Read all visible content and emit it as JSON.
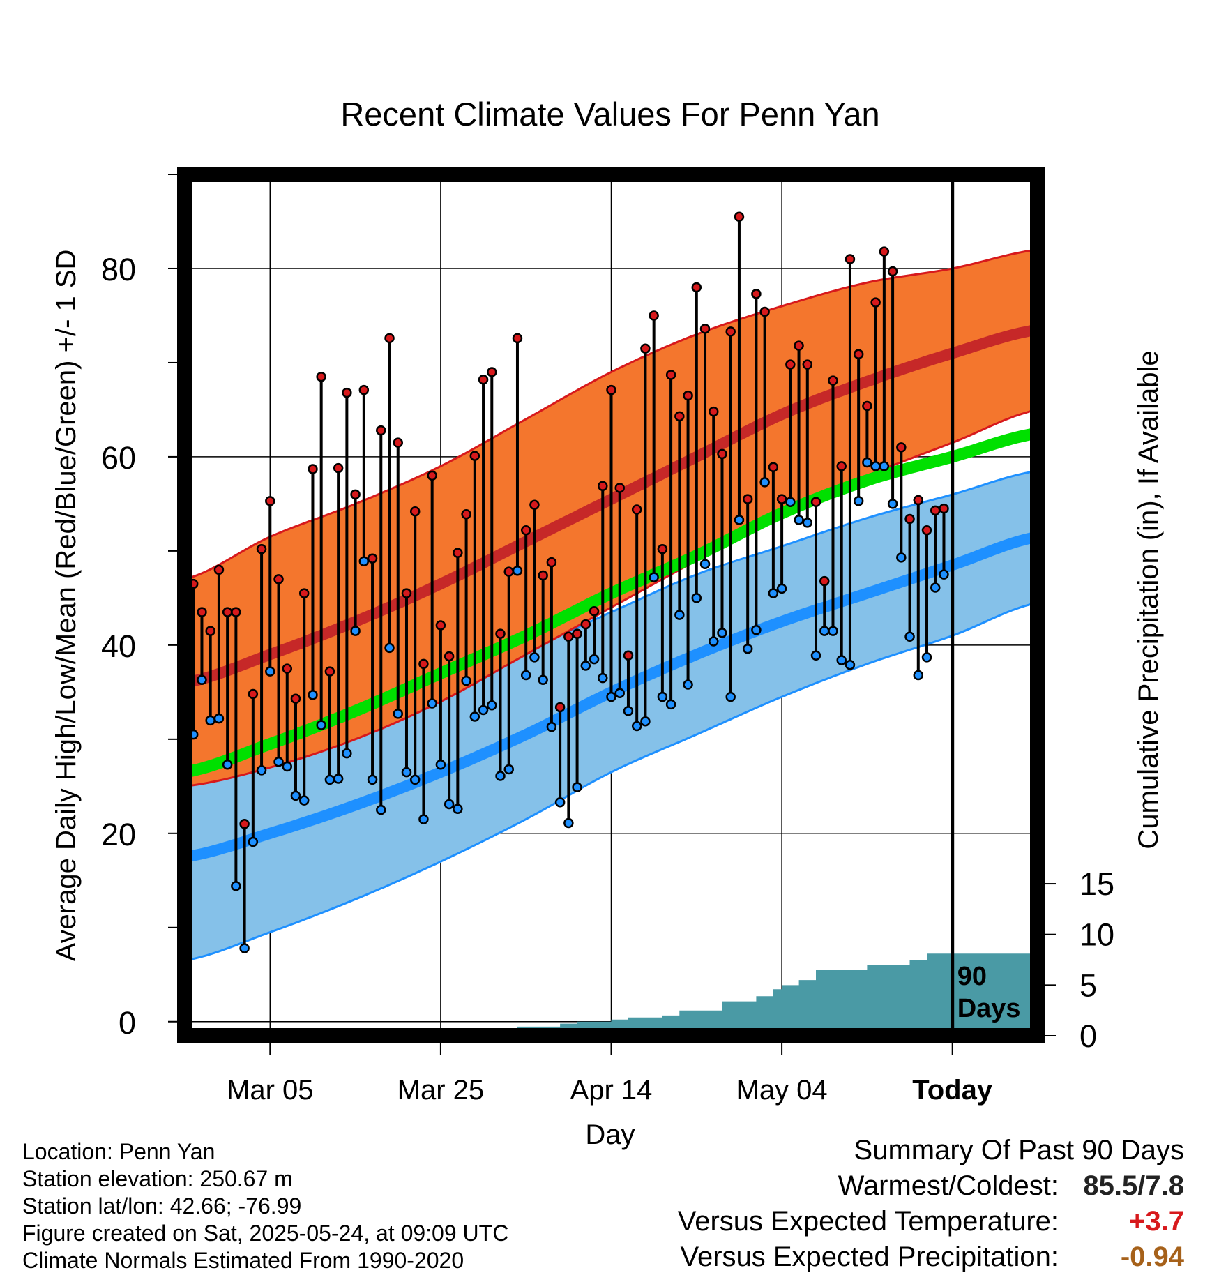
{
  "chart_data": {
    "type": "line",
    "title": "Recent Climate Values For Penn Yan",
    "xlabel": "Day",
    "ylabel": "Average Daily High/Low/Mean (Red/Blue/Green) +/- 1 SD",
    "y2label": "Cumulative Precipitation (in), If Available",
    "ylim": [
      -1.5,
      90
    ],
    "y2lim": [
      0,
      85
    ],
    "xlim": [
      0,
      100
    ],
    "yticks": [
      0,
      20,
      40,
      60,
      80
    ],
    "y2ticks": [
      0,
      5,
      10,
      15
    ],
    "xtick_labels": [
      {
        "day": 10,
        "label": "Mar 05"
      },
      {
        "day": 30,
        "label": "Mar 25"
      },
      {
        "day": 50,
        "label": "Apr 14"
      },
      {
        "day": 70,
        "label": "May 04"
      },
      {
        "day": 90,
        "label": "Today"
      }
    ],
    "today_marker": {
      "day": 90,
      "label_line1": "90",
      "label_line2": "Days"
    },
    "normals": {
      "days": [
        0,
        10,
        20,
        30,
        40,
        50,
        60,
        70,
        80,
        90,
        100
      ],
      "high_mean": [
        36,
        39,
        42.5,
        46.5,
        51,
        55.5,
        60,
        64.5,
        68,
        71,
        73.5
      ],
      "high_upper": [
        47,
        51.5,
        55,
        59,
        64,
        69,
        73,
        76,
        78.5,
        80,
        82
      ],
      "high_lower": [
        25,
        27,
        30,
        34,
        39,
        44,
        49,
        54,
        58,
        61.5,
        65
      ],
      "low_mean": [
        17.5,
        20,
        23,
        26.5,
        30.5,
        35,
        39,
        42.5,
        45.5,
        48.5,
        51.5
      ],
      "low_upper": [
        30,
        31,
        33.5,
        36.5,
        39.5,
        43.5,
        47.5,
        50.5,
        53.5,
        56,
        58.5
      ],
      "low_lower": [
        6.5,
        9.5,
        13,
        17,
        21.5,
        26.5,
        30.5,
        34.5,
        38,
        41,
        44.5
      ],
      "mean_line": [
        26.5,
        29.5,
        33,
        37,
        41,
        45.5,
        49.5,
        54,
        57.5,
        60,
        62.5
      ]
    },
    "series": [
      {
        "name": "High",
        "color": "#d7191c",
        "values": [
          35,
          46.5,
          43.5,
          41.5,
          48,
          43.5,
          43.5,
          21,
          34.8,
          50.2,
          55.3,
          47,
          37.5,
          34.3,
          45.5,
          58.7,
          68.5,
          37.2,
          58.8,
          66.8,
          56,
          67.1,
          49.2,
          62.8,
          72.6,
          61.5,
          45.5,
          54.2,
          38,
          58,
          42.1,
          38.8,
          49.8,
          53.9,
          60.1,
          68.2,
          69,
          41.2,
          47.8,
          72.6,
          52.2,
          54.9,
          47.4,
          48.8,
          33.4,
          40.9,
          41.2,
          42.2,
          43.6,
          56.9,
          67.1,
          56.7,
          38.9,
          54.4,
          71.5,
          75,
          50.2,
          68.7,
          64.3,
          66.5,
          78,
          73.6,
          64.8,
          60.3,
          73.3,
          85.5,
          55.5,
          77.3,
          75.4,
          58.9,
          55.5,
          69.8,
          71.8,
          69.8,
          55.2,
          46.8,
          68.1,
          59,
          81,
          70.9,
          65.4,
          76.4,
          81.8,
          79.7,
          61,
          53.4,
          55.4,
          52.2,
          54.3,
          54.5
        ]
      },
      {
        "name": "Low",
        "color": "#1e90ff",
        "values": [
          27.5,
          30.5,
          36.3,
          32,
          32.2,
          27.3,
          14.4,
          7.8,
          19.1,
          26.7,
          37.2,
          27.6,
          27.1,
          24,
          23.5,
          34.7,
          31.5,
          25.7,
          25.8,
          28.5,
          41.5,
          48.9,
          25.7,
          22.5,
          39.7,
          32.7,
          26.5,
          25.7,
          21.5,
          33.8,
          27.3,
          23.1,
          22.6,
          36.2,
          32.4,
          33.1,
          33.6,
          26.1,
          26.8,
          47.9,
          36.8,
          38.7,
          36.3,
          31.3,
          23.3,
          21.1,
          24.9,
          37.8,
          38.5,
          36.5,
          34.5,
          34.9,
          33,
          31.4,
          31.9,
          47.2,
          34.5,
          33.7,
          43.2,
          35.8,
          45,
          48.6,
          40.4,
          41.3,
          34.5,
          53.3,
          39.6,
          41.6,
          57.3,
          45.5,
          46,
          55.2,
          53.3,
          53,
          38.9,
          41.5,
          41.5,
          38.4,
          37.9,
          55.3,
          59.4,
          59,
          59,
          55,
          49.3,
          40.9,
          36.8,
          38.7,
          46.1,
          47.5
        ]
      },
      {
        "name": "Cumulative Precipitation",
        "color": "#4a9aa5",
        "days": [
          0,
          10,
          11,
          20,
          21,
          24,
          30,
          34,
          37,
          38,
          39,
          43,
          44,
          46,
          48,
          50,
          52,
          54,
          56,
          58,
          61,
          63,
          65,
          67,
          69,
          70,
          72,
          74,
          77,
          80,
          82,
          85,
          86,
          87,
          100
        ],
        "values": [
          0,
          0,
          0.1,
          0.1,
          0.2,
          0.2,
          0.2,
          0.4,
          0.4,
          0.7,
          0.9,
          0.9,
          1.2,
          1.4,
          1.4,
          1.6,
          1.8,
          1.8,
          2.0,
          2.5,
          2.5,
          3.4,
          3.4,
          3.9,
          4.6,
          5.0,
          5.5,
          6.5,
          6.5,
          7.0,
          7.0,
          7.5,
          7.5,
          8.1,
          8.1
        ]
      }
    ]
  },
  "footer": {
    "location": "Location: Penn Yan",
    "elevation": "Station elevation: 250.67 m",
    "latlon": "Station lat/lon: 42.66; -76.99",
    "created": "Figure created on Sat, 2025-05-24, at 09:09 UTC",
    "normals": "Climate Normals Estimated From 1990-2020"
  },
  "summary": {
    "heading": "Summary Of Past 90 Days",
    "warm_label": "Warmest/Coldest:",
    "warm_value": "85.5/7.8",
    "temp_label": "Versus Expected Temperature:",
    "temp_value": "+3.7",
    "precip_label": "Versus Expected Precipitation:",
    "precip_value": "-0.94"
  }
}
